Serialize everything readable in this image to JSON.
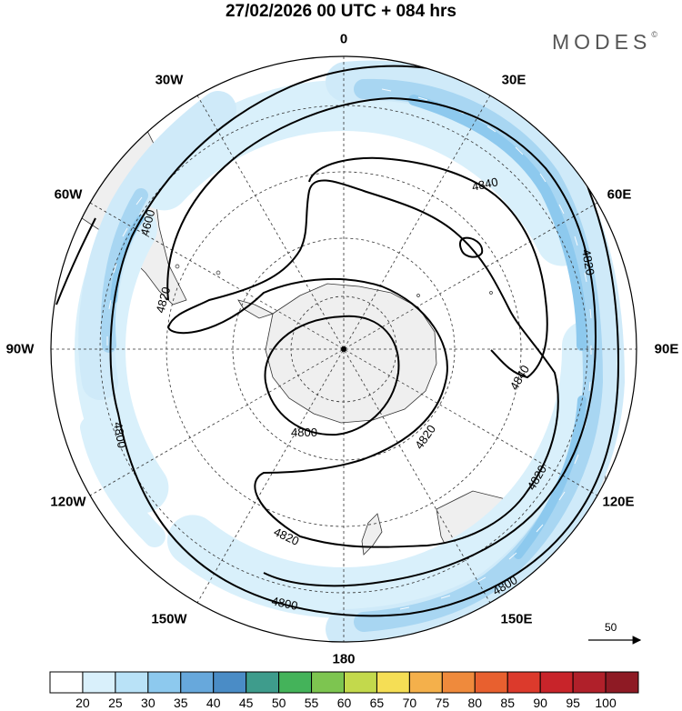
{
  "header": {
    "title": "27/02/2026  00 UTC  + 084 hrs",
    "brand": "MODES",
    "brand_mark": "©"
  },
  "map": {
    "projection": "south-polar-stereographic",
    "longitude_labels": [
      {
        "id": "lon-0",
        "text": "0"
      },
      {
        "id": "lon-30e",
        "text": "30E"
      },
      {
        "id": "lon-60e",
        "text": "60E"
      },
      {
        "id": "lon-90e",
        "text": "90E"
      },
      {
        "id": "lon-120e",
        "text": "120E"
      },
      {
        "id": "lon-150e",
        "text": "150E"
      },
      {
        "id": "lon-180",
        "text": "180"
      },
      {
        "id": "lon-150w",
        "text": "150W"
      },
      {
        "id": "lon-120w",
        "text": "120W"
      },
      {
        "id": "lon-90w",
        "text": "90W"
      },
      {
        "id": "lon-60w",
        "text": "60W"
      },
      {
        "id": "lon-30w",
        "text": "30W"
      }
    ],
    "contour_labels": [
      "4600",
      "4820",
      "4840",
      "4820",
      "4840",
      "4800",
      "4800",
      "4820",
      "4820",
      "4800",
      "4820",
      "4800",
      "4800"
    ],
    "reference_vector": {
      "value": "50"
    }
  },
  "colorbar": {
    "tick_labels": [
      "20",
      "25",
      "30",
      "35",
      "40",
      "45",
      "50",
      "55",
      "60",
      "65",
      "70",
      "75",
      "80",
      "85",
      "90",
      "95",
      "100"
    ],
    "colors": [
      "#ffffff",
      "#d9f0fb",
      "#b9e2f7",
      "#8dc9ee",
      "#67a8dc",
      "#4a8cc6",
      "#3e9c8c",
      "#44b35a",
      "#7dc550",
      "#c3d94c",
      "#f5de55",
      "#f4b04b",
      "#ef8a3c",
      "#e8602f",
      "#dc3a2c",
      "#c8242a",
      "#b0202a",
      "#8e1a24"
    ]
  },
  "colors": {
    "jet_light": "#cfeaf9",
    "jet_mid": "#a8d6f2",
    "jet_core": "#7fbde8",
    "land": "#efefef",
    "contour": "#000000"
  }
}
